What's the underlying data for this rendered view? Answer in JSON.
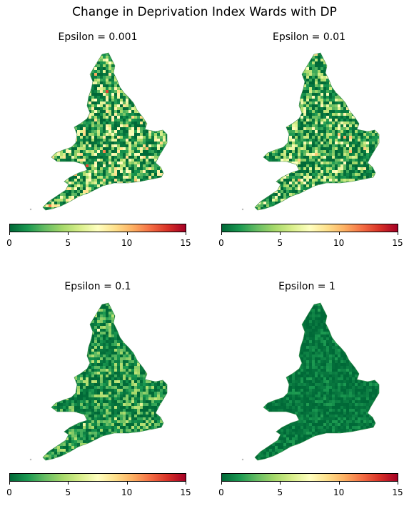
{
  "title": "Change in Deprivation Index Wards with DP",
  "colormap": {
    "name": "RdYlGn_r",
    "stops": [
      "#006837",
      "#1a9850",
      "#66bd63",
      "#a6d96a",
      "#d9ef8b",
      "#ffffbf",
      "#fee08b",
      "#fdae61",
      "#f46d43",
      "#d73027",
      "#a50026"
    ],
    "range": [
      0,
      15
    ],
    "ticks": [
      "0",
      "5",
      "10",
      "15"
    ]
  },
  "panels": [
    {
      "title": "Epsilon = 0.001",
      "level": 0.28
    },
    {
      "title": "Epsilon = 0.01",
      "level": 0.24
    },
    {
      "title": "Epsilon = 0.1",
      "level": 0.16
    },
    {
      "title": "Epsilon = 1",
      "level": 0.05
    }
  ]
}
